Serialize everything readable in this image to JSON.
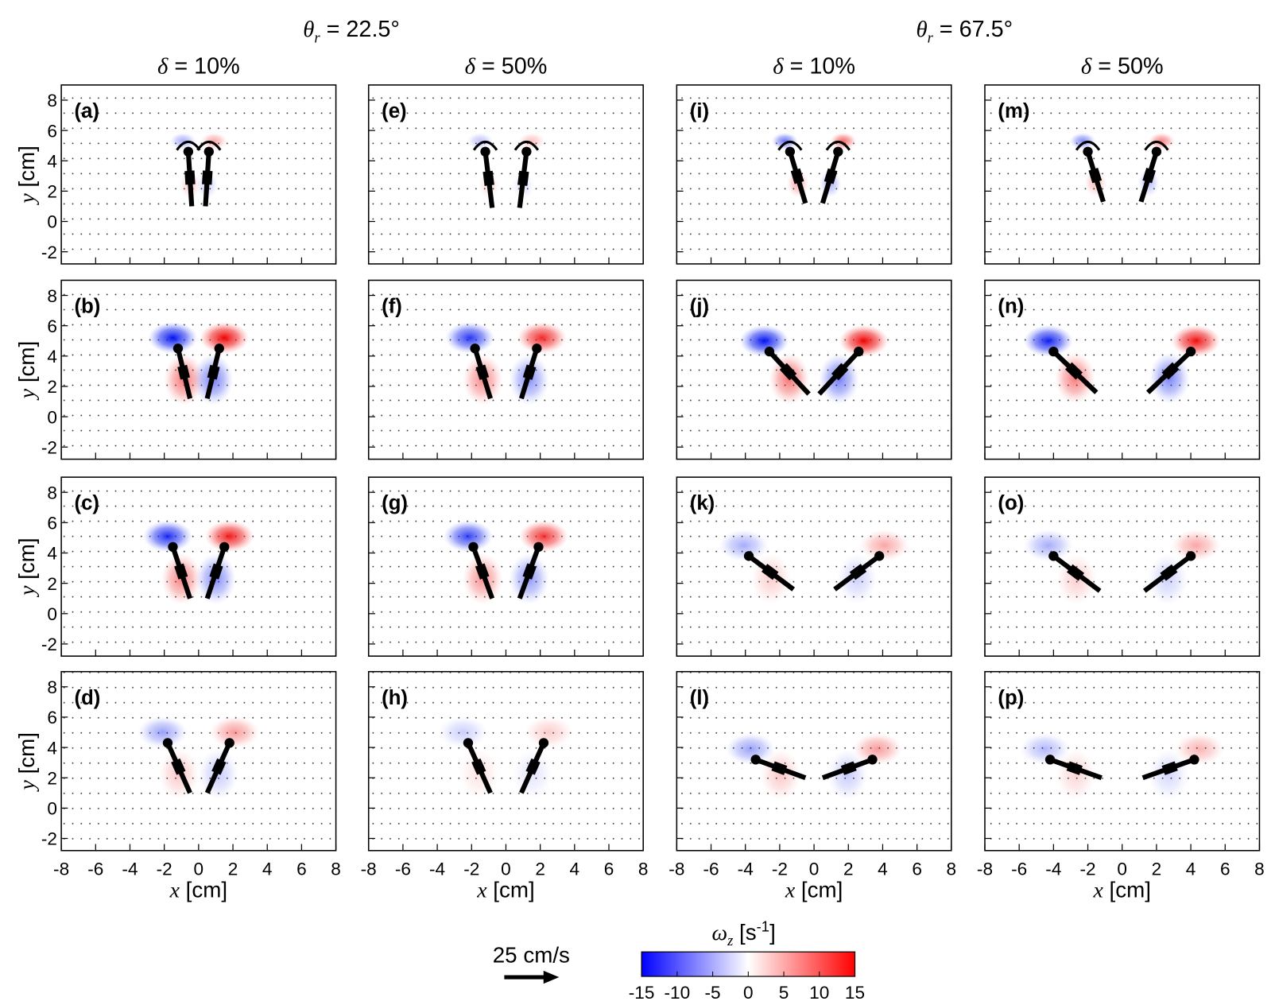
{
  "figure": {
    "column_groups": [
      {
        "symbol": "θ",
        "sub": "r",
        "text": " = 22.5°"
      },
      {
        "symbol": "θ",
        "sub": "r",
        "text": " = 67.5°"
      }
    ],
    "columns": [
      {
        "symbol": "δ",
        "text": " = 10%"
      },
      {
        "symbol": "δ",
        "text": " = 50%"
      },
      {
        "symbol": "δ",
        "text": " = 10%"
      },
      {
        "symbol": "δ",
        "text": " = 50%"
      }
    ],
    "panels": [
      [
        "(a)",
        "(b)",
        "(c)",
        "(d)"
      ],
      [
        "(e)",
        "(f)",
        "(g)",
        "(h)"
      ],
      [
        "(i)",
        "(j)",
        "(k)",
        "(l)"
      ],
      [
        "(m)",
        "(n)",
        "(o)",
        "(p)"
      ]
    ],
    "xlabel": {
      "var": "x",
      "unit": " [cm]"
    },
    "ylabel": {
      "var": "y",
      "unit": " [cm]"
    },
    "xlim": [
      -8,
      8
    ],
    "xticks": [
      -8,
      -6,
      -4,
      -2,
      0,
      2,
      4,
      6,
      8
    ],
    "ylim": [
      -2.8,
      9
    ],
    "yticks": [
      -2,
      0,
      2,
      4,
      6,
      8
    ],
    "colorbar": {
      "label": {
        "var": "ω",
        "sub": "z",
        "unit": " [s",
        "sup": "-1",
        "close": "]"
      },
      "lim": [
        -15,
        15
      ],
      "ticks": [
        -15,
        -10,
        -5,
        0,
        5,
        10,
        15
      ]
    },
    "scale_arrow": {
      "label": "25 cm/s"
    }
  }
}
